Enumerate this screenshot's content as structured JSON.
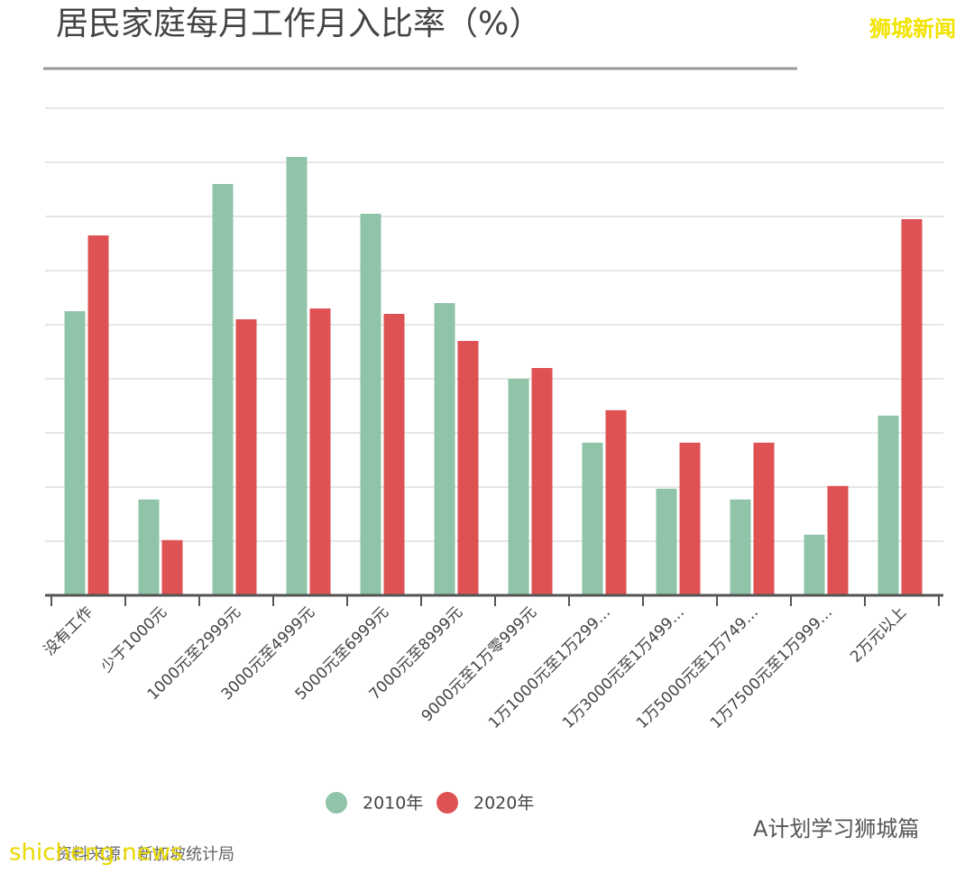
{
  "chart_data": {
    "type": "bar",
    "title": "居民家庭每月工作月入比率（%）",
    "categories": [
      "没有工作",
      "少于1000元",
      "1000元至2999元",
      "3000元至4999元",
      "5000元至6999元",
      "7000元至8999元",
      "9000元至1万零999元",
      "1万1000元至1万299…",
      "1万3000元至1万499…",
      "1万5000元至1万749…",
      "1万7500元至1万999…",
      "2万元以上"
    ],
    "series": [
      {
        "name": "2010年",
        "color": "#8fc4a8",
        "values": [
          5.25,
          1.77,
          7.6,
          8.1,
          7.05,
          5.4,
          4.0,
          2.82,
          1.97,
          1.77,
          1.12,
          3.32
        ]
      },
      {
        "name": "2020年",
        "color": "#de5254",
        "values": [
          6.65,
          1.02,
          5.1,
          5.3,
          5.2,
          4.7,
          4.2,
          3.42,
          2.82,
          2.82,
          2.02,
          6.95
        ]
      }
    ],
    "ylim": [
      0,
      9
    ],
    "yticks": [
      1,
      2,
      3,
      4,
      5,
      6,
      7,
      8,
      9
    ],
    "grid": true,
    "source": "资料来源：新加坡统计局",
    "watermarks": [
      "狮城新闻",
      "A计划学习狮城篇",
      "shicheng.news"
    ]
  }
}
